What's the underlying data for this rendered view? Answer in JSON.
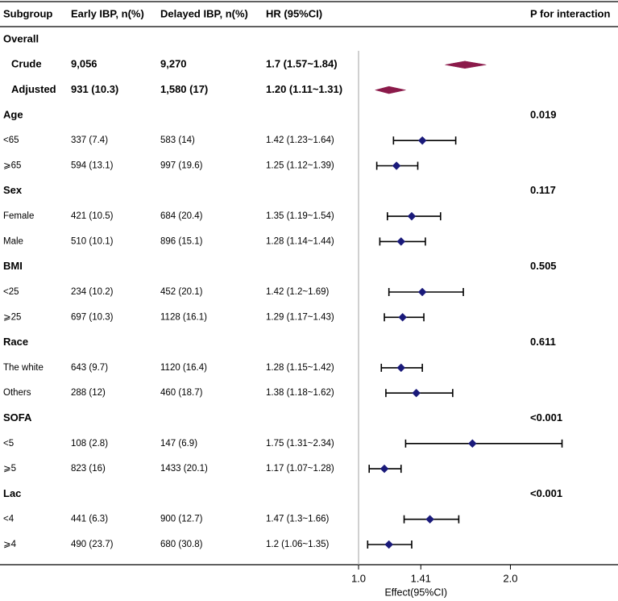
{
  "chart_data": {
    "type": "forest",
    "headers": {
      "subgroup": "Subgroup",
      "early": "Early IBP, n(%)",
      "delayed": "Delayed IBP, n(%)",
      "hr": "HR (95%CI)",
      "p": "P for interaction"
    },
    "xaxis": {
      "label": "Effect(95%CI)",
      "ticks": [
        1.0,
        1.41,
        2.0
      ],
      "tick_labels": [
        "1.0",
        "1.41",
        "2.0"
      ],
      "range": [
        1.0,
        2.3
      ],
      "reference_line": 1.0
    },
    "rows": [
      {
        "label": "Overall",
        "kind": "section"
      },
      {
        "label": "Crude",
        "kind": "diamond",
        "early": "9,056",
        "delayed": "9,270",
        "hr_text": "1.7 (1.57~1.84)",
        "hr": 1.7,
        "lo": 1.57,
        "hi": 1.84
      },
      {
        "label": "Adjusted",
        "kind": "diamond",
        "early": "931 (10.3)",
        "delayed": "1,580 (17)",
        "hr_text": "1.20 (1.11~1.31)",
        "hr": 1.2,
        "lo": 1.11,
        "hi": 1.31
      },
      {
        "label": "Age",
        "kind": "section",
        "p": "0.019"
      },
      {
        "label": "<65",
        "kind": "point",
        "early": "337 (7.4)",
        "delayed": "583 (14)",
        "hr_text": "1.42 (1.23~1.64)",
        "hr": 1.42,
        "lo": 1.23,
        "hi": 1.64
      },
      {
        "label": "⩾65",
        "kind": "point",
        "early": "594 (13.1)",
        "delayed": "997 (19.6)",
        "hr_text": "1.25 (1.12~1.39)",
        "hr": 1.25,
        "lo": 1.12,
        "hi": 1.39
      },
      {
        "label": "Sex",
        "kind": "section",
        "p": "0.117"
      },
      {
        "label": "Female",
        "kind": "point",
        "early": "421 (10.5)",
        "delayed": "684 (20.4)",
        "hr_text": "1.35 (1.19~1.54)",
        "hr": 1.35,
        "lo": 1.19,
        "hi": 1.54
      },
      {
        "label": "Male",
        "kind": "point",
        "early": "510 (10.1)",
        "delayed": "896 (15.1)",
        "hr_text": "1.28 (1.14~1.44)",
        "hr": 1.28,
        "lo": 1.14,
        "hi": 1.44
      },
      {
        "label": "BMI",
        "kind": "section",
        "p": "0.505"
      },
      {
        "label": "<25",
        "kind": "point",
        "early": "234 (10.2)",
        "delayed": "452 (20.1)",
        "hr_text": "1.42 (1.2~1.69)",
        "hr": 1.42,
        "lo": 1.2,
        "hi": 1.69
      },
      {
        "label": "⩾25",
        "kind": "point",
        "early": "697 (10.3)",
        "delayed": "1128 (16.1)",
        "hr_text": "1.29 (1.17~1.43)",
        "hr": 1.29,
        "lo": 1.17,
        "hi": 1.43
      },
      {
        "label": "Race",
        "kind": "section",
        "p": "0.611"
      },
      {
        "label": "The white",
        "kind": "point",
        "early": "643 (9.7)",
        "delayed": "1120 (16.4)",
        "hr_text": "1.28 (1.15~1.42)",
        "hr": 1.28,
        "lo": 1.15,
        "hi": 1.42
      },
      {
        "label": "Others",
        "kind": "point",
        "early": "288 (12)",
        "delayed": "460 (18.7)",
        "hr_text": "1.38 (1.18~1.62)",
        "hr": 1.38,
        "lo": 1.18,
        "hi": 1.62
      },
      {
        "label": "SOFA",
        "kind": "section",
        "p": "<0.001"
      },
      {
        "label": "<5",
        "kind": "point",
        "early": "108 (2.8)",
        "delayed": "147 (6.9)",
        "hr_text": "1.75 (1.31~2.34)",
        "hr": 1.75,
        "lo": 1.31,
        "hi": 2.34
      },
      {
        "label": "⩾5",
        "kind": "point",
        "early": "823 (16)",
        "delayed": "1433 (20.1)",
        "hr_text": "1.17 (1.07~1.28)",
        "hr": 1.17,
        "lo": 1.07,
        "hi": 1.28
      },
      {
        "label": "Lac",
        "kind": "section",
        "p": "<0.001"
      },
      {
        "label": "<4",
        "kind": "point",
        "early": "441 (6.3)",
        "delayed": "900 (12.7)",
        "hr_text": "1.47 (1.3~1.66)",
        "hr": 1.47,
        "lo": 1.3,
        "hi": 1.66
      },
      {
        "label": "⩾4",
        "kind": "point",
        "early": "490 (23.7)",
        "delayed": "680 (30.8)",
        "hr_text": "1.2 (1.06~1.35)",
        "hr": 1.2,
        "lo": 1.06,
        "hi": 1.35
      }
    ],
    "colors": {
      "point": "#1a1a7a",
      "diamond": "#8b1a4a",
      "whisker": "#000000",
      "reference": "#b0b0b0"
    }
  }
}
